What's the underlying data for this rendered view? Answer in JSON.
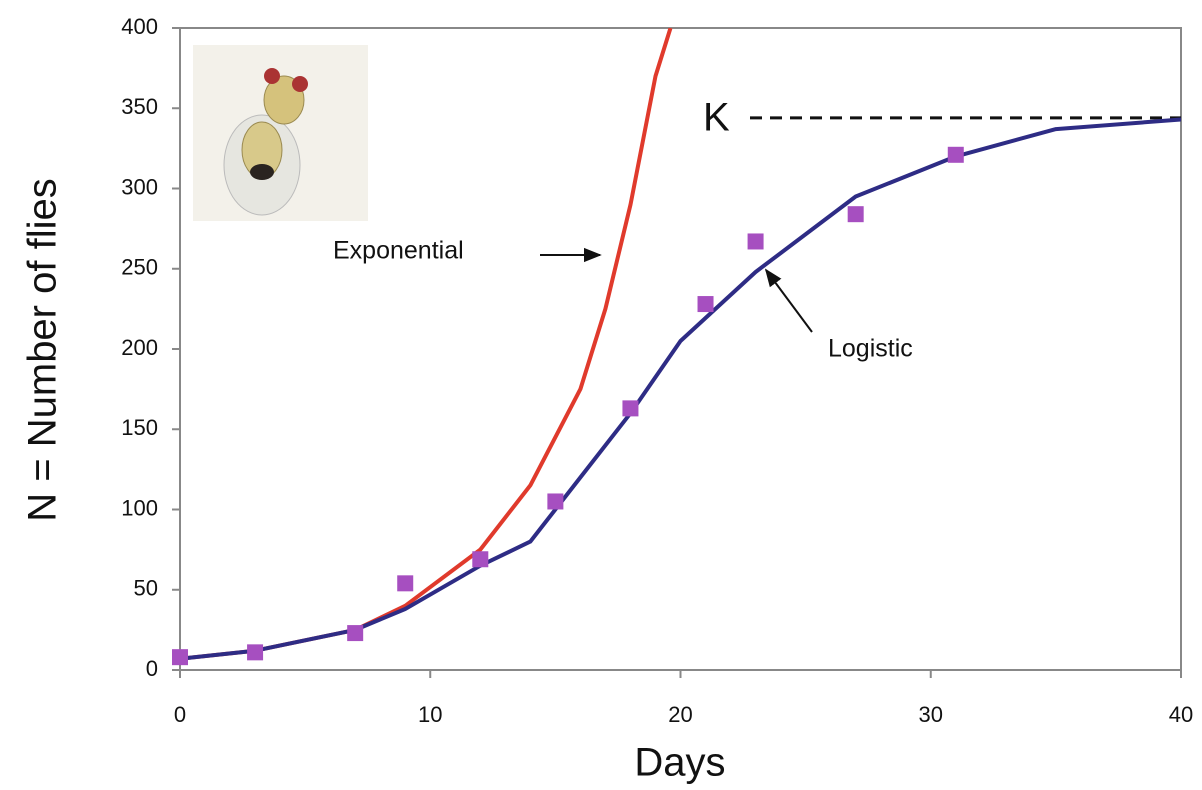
{
  "chart_data": {
    "type": "line",
    "y_label": "N = Number of flies",
    "x_label": "Days",
    "xlim": [
      0,
      40
    ],
    "ylim": [
      0,
      400
    ],
    "xticks": [
      0,
      10,
      20,
      30,
      40
    ],
    "yticks": [
      0,
      50,
      100,
      150,
      200,
      250,
      300,
      350,
      400
    ],
    "series": [
      {
        "name": "Exponential",
        "color": "#e03a2c",
        "marker": "none",
        "x": [
          0,
          3,
          7,
          9,
          12,
          14,
          16,
          17,
          18,
          19,
          19.6
        ],
        "values": [
          7,
          12,
          25,
          40,
          75,
          115,
          175,
          225,
          290,
          370,
          400
        ]
      },
      {
        "name": "Logistic",
        "color": "#2e2c85",
        "marker": "none",
        "x": [
          0,
          3,
          7,
          9,
          12,
          14,
          16,
          18,
          20,
          23,
          27,
          31,
          35,
          40
        ],
        "values": [
          7,
          12,
          25,
          38,
          65,
          80,
          120,
          160,
          205,
          248,
          295,
          320,
          337,
          343
        ]
      },
      {
        "color": "#a64fc0",
        "marker": "square",
        "x": [
          0,
          3,
          7,
          9,
          12,
          15,
          18,
          21,
          23,
          27,
          31
        ],
        "values": [
          8,
          11,
          23,
          54,
          69,
          105,
          163,
          228,
          267,
          284,
          321
        ]
      }
    ],
    "k_line": {
      "label": "K",
      "value": 344
    }
  }
}
